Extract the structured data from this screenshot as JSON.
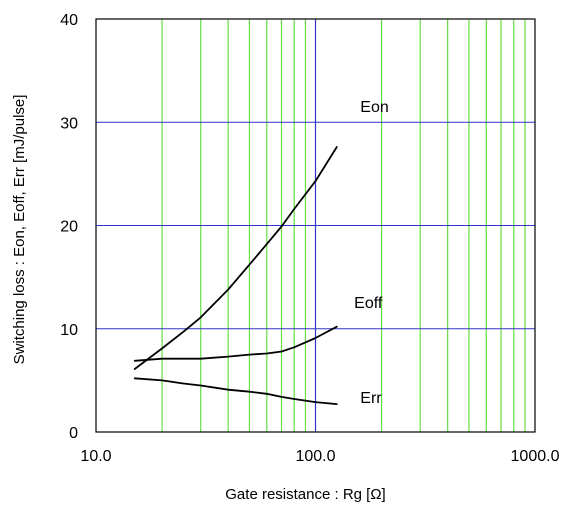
{
  "chart_data": {
    "type": "line",
    "title": "",
    "xlabel": "Gate resistance : Rg [Ω]",
    "ylabel": "Switching loss : Eon, Eoff, Err [mJ/pulse]",
    "x_scale": "log",
    "xlim": [
      10,
      1000
    ],
    "ylim": [
      0,
      40
    ],
    "x_ticks": [
      10,
      100,
      1000
    ],
    "x_tick_labels": [
      "10.0",
      "100.0",
      "1000.0"
    ],
    "y_ticks": [
      0,
      10,
      20,
      30,
      40
    ],
    "y_tick_labels": [
      "0",
      "10",
      "20",
      "30",
      "40"
    ],
    "grid": true,
    "major_grid_color": "#3333cc",
    "minor_grid_color": "#66dd44",
    "line_color": "#000000",
    "series": [
      {
        "name": "Eon",
        "x": [
          15,
          20,
          25,
          30,
          40,
          50,
          60,
          70,
          80,
          100,
          125
        ],
        "y": [
          6.1,
          8.1,
          9.7,
          11.1,
          13.8,
          16.2,
          18.2,
          19.9,
          21.6,
          24.3,
          27.6
        ]
      },
      {
        "name": "Eoff",
        "x": [
          15,
          20,
          25,
          30,
          40,
          50,
          60,
          70,
          80,
          100,
          125
        ],
        "y": [
          6.9,
          7.1,
          7.1,
          7.1,
          7.3,
          7.5,
          7.6,
          7.8,
          8.2,
          9.1,
          10.2
        ]
      },
      {
        "name": "Err",
        "x": [
          15,
          20,
          25,
          30,
          40,
          50,
          60,
          70,
          80,
          100,
          125
        ],
        "y": [
          5.2,
          5.0,
          4.7,
          4.5,
          4.1,
          3.9,
          3.7,
          3.4,
          3.2,
          2.9,
          2.7
        ]
      }
    ],
    "annotations": [
      {
        "text": "Eon",
        "series": "Eon",
        "x": 160,
        "y": 31
      },
      {
        "text": "Eoff",
        "series": "Eoff",
        "x": 150,
        "y": 12
      },
      {
        "text": "Err",
        "series": "Err",
        "x": 160,
        "y": 2.8
      }
    ]
  }
}
